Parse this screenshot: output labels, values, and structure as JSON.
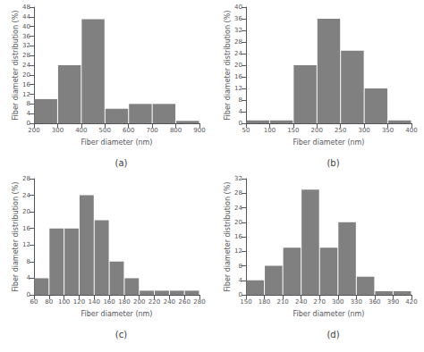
{
  "chart_data": [
    {
      "type": "histogram",
      "title": "(a)",
      "xlabel": "Fiber diameter (nm)",
      "ylabel": "Fiber diameter distribution (%)",
      "color": "#808080",
      "grid": false,
      "bins": [
        200,
        300,
        400,
        500,
        600,
        700,
        800,
        900
      ],
      "values": [
        10,
        24,
        43,
        6,
        8,
        8,
        1
      ],
      "xlim": [
        200,
        900
      ],
      "xticks": [
        200,
        300,
        400,
        500,
        600,
        700,
        800,
        900
      ],
      "ylim": [
        0,
        48
      ],
      "yticks": [
        0,
        4,
        8,
        12,
        16,
        20,
        24,
        28,
        32,
        36,
        40,
        44,
        48
      ]
    },
    {
      "type": "histogram",
      "title": "(b)",
      "xlabel": "Fiber diameter (nm)",
      "ylabel": "Fiber diameter distribution (%)",
      "color": "#808080",
      "grid": false,
      "bins": [
        50,
        100,
        150,
        200,
        250,
        300,
        350,
        400
      ],
      "values": [
        1,
        1,
        20,
        36,
        25,
        12,
        1
      ],
      "xlim": [
        50,
        400
      ],
      "xticks": [
        50,
        100,
        150,
        200,
        250,
        300,
        350,
        400
      ],
      "ylim": [
        0,
        40
      ],
      "yticks": [
        0,
        4,
        8,
        12,
        16,
        20,
        24,
        28,
        32,
        36,
        40
      ]
    },
    {
      "type": "histogram",
      "title": "(c)",
      "xlabel": "Fiber diameter (nm)",
      "ylabel": "Fiber diameter distribution (%)",
      "color": "#808080",
      "grid": false,
      "bins": [
        60,
        80,
        100,
        120,
        140,
        160,
        180,
        200,
        220,
        240,
        260,
        280
      ],
      "values": [
        4,
        16,
        16,
        24,
        18,
        8,
        4,
        1,
        1,
        1,
        1
      ],
      "xlim": [
        60,
        280
      ],
      "xticks": [
        60,
        80,
        100,
        120,
        140,
        160,
        180,
        200,
        220,
        240,
        260,
        280
      ],
      "ylim": [
        0,
        28
      ],
      "yticks": [
        0,
        4,
        8,
        12,
        16,
        20,
        24,
        28
      ]
    },
    {
      "type": "histogram",
      "title": "(d)",
      "xlabel": "Fiber diameter (nm)",
      "ylabel": "Fiber diameter distribution (%)",
      "color": "#808080",
      "grid": false,
      "bins": [
        150,
        180,
        210,
        240,
        270,
        300,
        330,
        360,
        390,
        420
      ],
      "values": [
        4,
        8,
        13,
        29,
        13,
        20,
        5,
        1,
        1
      ],
      "xlim": [
        150,
        420
      ],
      "xticks": [
        150,
        180,
        210,
        240,
        270,
        300,
        330,
        360,
        390,
        420
      ],
      "ylim": [
        0,
        32
      ],
      "yticks": [
        0,
        4,
        8,
        12,
        16,
        20,
        24,
        28,
        32
      ]
    }
  ]
}
